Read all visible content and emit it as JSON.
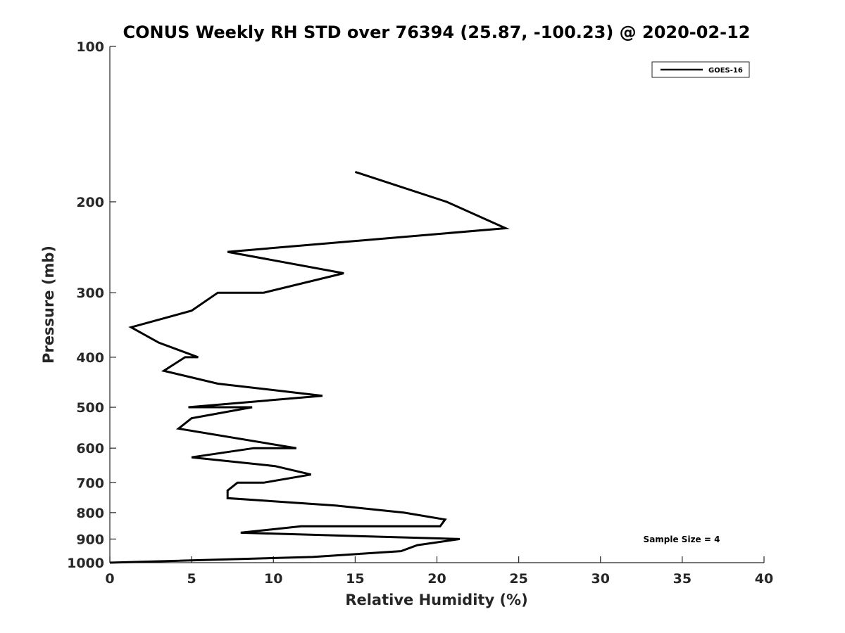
{
  "chart_data": {
    "type": "line",
    "title": "CONUS Weekly RH STD over 76394 (25.87, -100.23) @ 2020-02-12",
    "xlabel": "Relative Humidity (%)",
    "ylabel": "Pressure (mb)",
    "xlim": [
      0,
      40
    ],
    "ylim": [
      100,
      1000
    ],
    "y_scale": "log",
    "y_reversed": true,
    "x_ticks": [
      "0",
      "5",
      "10",
      "15",
      "20",
      "25",
      "30",
      "35",
      "40"
    ],
    "y_ticks": [
      "100",
      "200",
      "300",
      "400",
      "500",
      "600",
      "700",
      "800",
      "900",
      "1000"
    ],
    "grid": false,
    "legend_position": "top-right",
    "annotation": "Sample Size = 4",
    "line_color": "#000000",
    "series": [
      {
        "name": "GOES-16",
        "points": [
          {
            "x": 15.0,
            "y": 175
          },
          {
            "x": 20.6,
            "y": 200
          },
          {
            "x": 24.2,
            "y": 225
          },
          {
            "x": 7.2,
            "y": 250
          },
          {
            "x": 14.3,
            "y": 275
          },
          {
            "x": 9.4,
            "y": 300
          },
          {
            "x": 6.6,
            "y": 300
          },
          {
            "x": 5.0,
            "y": 325
          },
          {
            "x": 1.3,
            "y": 350
          },
          {
            "x": 3.0,
            "y": 375
          },
          {
            "x": 5.4,
            "y": 400
          },
          {
            "x": 4.6,
            "y": 400
          },
          {
            "x": 3.3,
            "y": 425
          },
          {
            "x": 6.6,
            "y": 450
          },
          {
            "x": 13.0,
            "y": 475
          },
          {
            "x": 4.8,
            "y": 500
          },
          {
            "x": 8.7,
            "y": 500
          },
          {
            "x": 5.0,
            "y": 525
          },
          {
            "x": 4.2,
            "y": 550
          },
          {
            "x": 11.4,
            "y": 600
          },
          {
            "x": 8.8,
            "y": 600
          },
          {
            "x": 5.0,
            "y": 625
          },
          {
            "x": 10.1,
            "y": 650
          },
          {
            "x": 12.3,
            "y": 675
          },
          {
            "x": 9.4,
            "y": 700
          },
          {
            "x": 7.8,
            "y": 700
          },
          {
            "x": 7.2,
            "y": 725
          },
          {
            "x": 7.2,
            "y": 750
          },
          {
            "x": 13.8,
            "y": 775
          },
          {
            "x": 18.0,
            "y": 800
          },
          {
            "x": 20.5,
            "y": 825
          },
          {
            "x": 20.2,
            "y": 850
          },
          {
            "x": 11.7,
            "y": 850
          },
          {
            "x": 8.0,
            "y": 875
          },
          {
            "x": 21.4,
            "y": 900
          },
          {
            "x": 18.8,
            "y": 925
          },
          {
            "x": 17.8,
            "y": 950
          },
          {
            "x": 12.4,
            "y": 975
          },
          {
            "x": 0.0,
            "y": 1000
          }
        ]
      }
    ]
  }
}
